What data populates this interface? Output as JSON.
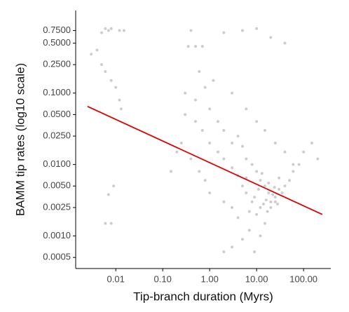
{
  "chart_data": {
    "type": "scatter",
    "x_label": "Tip-branch duration (Myrs)",
    "y_label": "BAMM tip rates (log10 scale)",
    "log_x": true,
    "log_y": true,
    "color": "#000000",
    "opacity": 0.2,
    "xlim": [
      0.0014,
      380
    ],
    "ylim": [
      0.00035,
      1.43
    ],
    "xticks": [
      0.01,
      {
        "value": 0.1,
        "label": "0.10"
      },
      {
        "value": 1,
        "label": "1.00"
      },
      {
        "value": 10,
        "label": "10.00"
      },
      {
        "value": 100,
        "label": "100.00"
      }
    ],
    "yticks": [
      {
        "value": 0.75,
        "label": "0.7500"
      },
      {
        "value": 0.5,
        "label": "0.5000"
      },
      {
        "value": 0.25,
        "label": "0.2500"
      },
      {
        "value": 0.1,
        "label": "0.1000"
      },
      {
        "value": 0.05,
        "label": "0.0500"
      },
      {
        "value": 0.025,
        "label": "0.0250"
      },
      {
        "value": 0.01,
        "label": "0.0100"
      },
      {
        "value": 0.005,
        "label": "0.0050"
      },
      {
        "value": 0.0025,
        "label": "0.0025"
      },
      {
        "value": 0.001,
        "label": "0.0010"
      },
      {
        "value": 0.0005,
        "label": "0.0005"
      }
    ],
    "x": [
      0.005,
      0.006,
      0.007,
      0.008,
      0.012,
      0.015,
      0.004,
      0.005,
      0.006,
      0.008,
      0.01,
      0.012,
      0.013,
      0.009,
      0.007,
      0.006,
      0.008,
      0.003,
      0.35,
      0.5,
      0.7,
      0.4,
      2,
      5,
      10,
      20,
      40,
      0.2,
      0.15,
      0.3,
      0.5,
      0.8,
      1,
      1.5,
      2,
      3,
      4,
      5,
      6,
      8,
      10,
      12,
      15,
      18,
      20,
      25,
      30,
      12,
      8,
      6,
      5,
      4,
      3,
      2,
      1.5,
      1,
      0.7,
      0.5,
      10,
      15,
      20,
      25,
      35,
      40,
      50,
      60,
      80,
      100,
      150,
      200,
      7,
      5,
      3,
      2,
      9,
      12,
      4,
      3,
      2,
      1,
      0.8,
      0.6,
      0.4,
      0.25,
      0.3,
      0.6,
      1.2,
      3,
      6,
      10,
      15,
      25,
      40,
      60,
      9,
      11,
      14,
      16,
      18,
      22,
      28,
      7,
      6,
      13,
      17,
      24,
      30
    ],
    "y": [
      0.7,
      0.8,
      0.75,
      0.8,
      0.75,
      0.75,
      0.4,
      0.25,
      0.2,
      0.15,
      0.12,
      0.08,
      0.06,
      0.005,
      0.0038,
      0.0015,
      0.0015,
      0.35,
      0.45,
      0.45,
      0.45,
      0.75,
      0.7,
      0.75,
      0.8,
      0.6,
      0.5,
      0.015,
      0.008,
      0.05,
      0.08,
      0.12,
      0.06,
      0.04,
      0.03,
      0.02,
      0.025,
      0.018,
      0.012,
      0.01,
      0.008,
      0.006,
      0.005,
      0.004,
      0.003,
      0.0035,
      0.0045,
      0.0025,
      0.003,
      0.004,
      0.005,
      0.007,
      0.009,
      0.012,
      0.015,
      0.02,
      0.03,
      0.04,
      0.002,
      0.0015,
      0.0025,
      0.003,
      0.004,
      0.005,
      0.006,
      0.008,
      0.01,
      0.015,
      0.02,
      0.012,
      0.0012,
      0.0009,
      0.0007,
      0.0006,
      0.0006,
      0.001,
      0.0018,
      0.0025,
      0.003,
      0.004,
      0.006,
      0.008,
      0.012,
      0.02,
      0.1,
      0.2,
      0.15,
      0.1,
      0.06,
      0.04,
      0.03,
      0.02,
      0.015,
      0.01,
      0.0035,
      0.0045,
      0.0028,
      0.0032,
      0.0055,
      0.0038,
      0.0028,
      0.0022,
      0.0065,
      0.0075,
      0.0022,
      0.0048,
      0.0065
    ],
    "fit_line": {
      "color": "#e00000",
      "x": [
        0.0025,
        250
      ],
      "y": [
        0.065,
        0.002
      ]
    }
  }
}
